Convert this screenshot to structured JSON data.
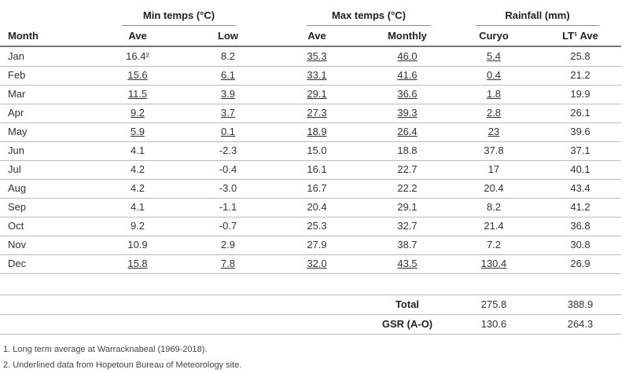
{
  "table": {
    "groups": [
      "Min temps (°C)",
      "Max temps (°C)",
      "Rainfall (mm)"
    ],
    "columns": [
      "Month",
      "Ave",
      "Low",
      "Ave",
      "Monthly",
      "Curyo",
      "LT¹ Ave"
    ],
    "rows": [
      [
        "Jan",
        "16.4²",
        "8.2",
        {
          "text": "35.3",
          "underline": true
        },
        {
          "text": "46.0",
          "underline": true
        },
        {
          "text": "5.4",
          "underline": true
        },
        "25.8"
      ],
      [
        "Feb",
        {
          "text": "15.6",
          "underline": true
        },
        {
          "text": "6.1",
          "underline": true
        },
        {
          "text": "33.1",
          "underline": true
        },
        {
          "text": "41.6",
          "underline": true
        },
        {
          "text": "0.4",
          "underline": true
        },
        "21.2"
      ],
      [
        "Mar",
        {
          "text": "11.5",
          "underline": true
        },
        {
          "text": "3.9",
          "underline": true
        },
        {
          "text": "29.1",
          "underline": true
        },
        {
          "text": "36.6",
          "underline": true
        },
        {
          "text": "1.8",
          "underline": true
        },
        "19.9"
      ],
      [
        "Apr",
        {
          "text": "9.2",
          "underline": true
        },
        {
          "text": "3.7",
          "underline": true
        },
        {
          "text": "27.3",
          "underline": true
        },
        {
          "text": "39.3",
          "underline": true
        },
        {
          "text": "2.8",
          "underline": true
        },
        "26.1"
      ],
      [
        "May",
        {
          "text": "5.9",
          "underline": true
        },
        {
          "text": "0.1",
          "underline": true
        },
        {
          "text": "18.9",
          "underline": true
        },
        {
          "text": "26.4",
          "underline": true
        },
        {
          "text": "23",
          "underline": true
        },
        "39.6"
      ],
      [
        "Jun",
        "4.1",
        "-2.3",
        "15.0",
        "18.8",
        "37.8",
        "37.1"
      ],
      [
        "Jul",
        "4.2",
        "-0.4",
        "16.1",
        "22.7",
        "17",
        "40.1"
      ],
      [
        "Aug",
        "4.2",
        "-3.0",
        "16.7",
        "22.2",
        "20.4",
        "43.4"
      ],
      [
        "Sep",
        "4.1",
        "-1.1",
        "20.4",
        "29.1",
        "8.2",
        "41.2"
      ],
      [
        "Oct",
        "9.2",
        "-0.7",
        "25.3",
        "32.7",
        "21.4",
        "36.8"
      ],
      [
        "Nov",
        "10.9",
        "2.9",
        "27.9",
        "38.7",
        "7.2",
        "30.8"
      ],
      [
        "Dec",
        {
          "text": "15.8",
          "underline": true
        },
        {
          "text": "7.8",
          "underline": true
        },
        {
          "text": "32.0",
          "underline": true
        },
        {
          "text": "43.5",
          "underline": true
        },
        {
          "text": "130.4",
          "underline": true
        },
        "26.9"
      ]
    ],
    "summary": [
      {
        "label": "Total",
        "values": [
          "275.8",
          "388.9"
        ]
      },
      {
        "label": "GSR (A-O)",
        "values": [
          "130.6",
          "264.3"
        ]
      }
    ]
  },
  "footnotes": [
    "1. Long term average at Warracknabeal (1969-2018).",
    "2. Underlined data from Hopetoun Bureau of Meteorology site."
  ]
}
